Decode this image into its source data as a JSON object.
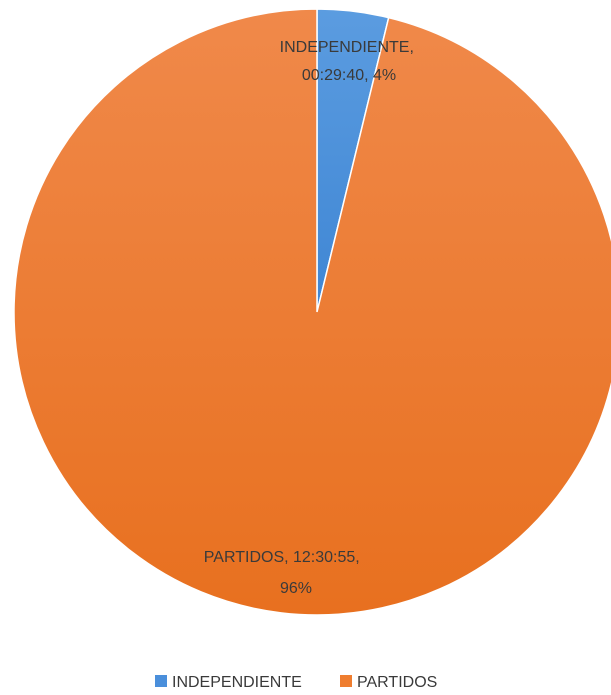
{
  "chart_data": {
    "type": "pie",
    "title": "",
    "slices": [
      {
        "name": "INDEPENDIENTE",
        "duration": "00:29:40",
        "percent": 4,
        "value_seconds": 1780,
        "color": "#4a8fdb",
        "label_lines": [
          "INDEPENDIENTE,",
          "00:29:40, 4%"
        ]
      },
      {
        "name": "PARTIDOS",
        "duration": "12:30:55",
        "percent": 96,
        "value_seconds": 45055,
        "color": "#ef7d2f",
        "label_lines": [
          "PARTIDOS, 12:30:55,",
          "96%"
        ]
      }
    ],
    "legend": {
      "position": "bottom",
      "entries": [
        "INDEPENDIENTE",
        "PARTIDOS"
      ]
    }
  }
}
